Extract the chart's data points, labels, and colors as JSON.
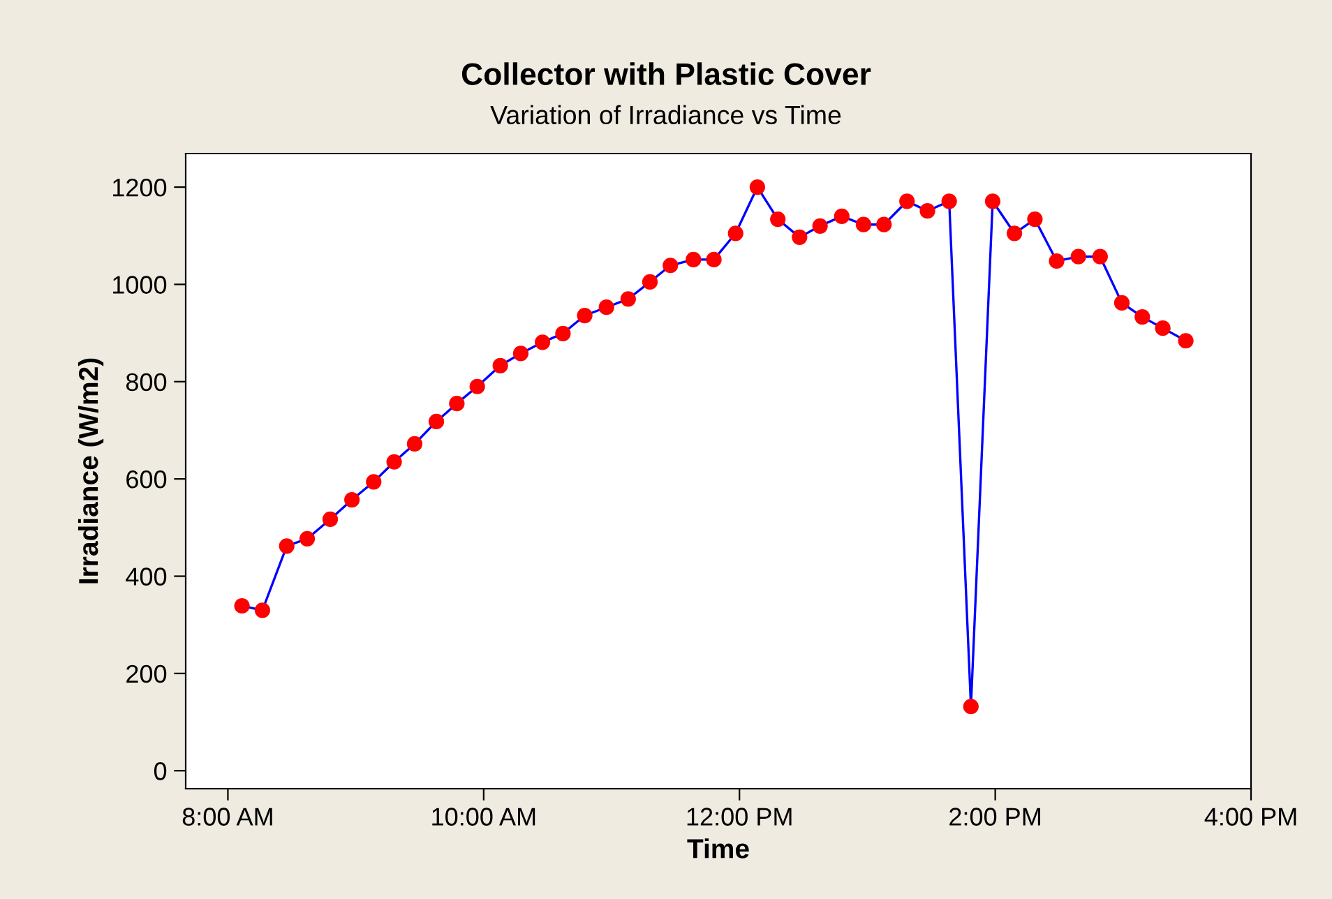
{
  "chart_data": {
    "type": "line",
    "title": "Collector with Plastic Cover",
    "subtitle": "Variation of Irradiance vs Time",
    "xlabel": "Time",
    "ylabel": "Irradiance (W/m2)",
    "x": [
      8.11,
      8.27,
      8.46,
      8.62,
      8.8,
      8.97,
      9.14,
      9.3,
      9.46,
      9.63,
      9.79,
      9.95,
      10.13,
      10.29,
      10.46,
      10.62,
      10.79,
      10.96,
      11.13,
      11.3,
      11.46,
      11.64,
      11.8,
      11.97,
      12.14,
      12.3,
      12.47,
      12.63,
      12.8,
      12.97,
      13.13,
      13.31,
      13.47,
      13.64,
      13.81,
      13.98,
      14.15,
      14.31,
      14.48,
      14.65,
      14.82,
      14.99,
      15.15,
      15.31,
      15.49
    ],
    "series": [
      {
        "color": "#0000ff",
        "colors": [
          "#ff0000",
          "#ff0000",
          "#ff0000",
          "#ff0000",
          "#ff0000",
          "#ff0000",
          "#ff0000",
          "#ff0000",
          "#ff0000",
          "#ff0000",
          "#ff0000",
          "#ff0000",
          "#ff0000",
          "#ff0000",
          "#ff0000",
          "#ff0000",
          "#ff0000",
          "#ff0000",
          "#ff0000",
          "#ff0000",
          "#ff0000",
          "#ff0000",
          "#ff0000",
          "#ff0000",
          "#ff0000",
          "#ff0000",
          "#ff0000",
          "#ff0000",
          "#ff0000",
          "#ff0000",
          "#ff0000",
          "#ff0000",
          "#ff0000",
          "#ff0000",
          "#ff0000",
          "#ff0000",
          "#ff0000",
          "#ff0000",
          "#ff0000",
          "#ff0000",
          "#ff0000",
          "#ff0000",
          "#ff0000",
          "#ff0000",
          "#ff0000"
        ],
        "values": [
          339,
          330,
          462,
          477,
          517,
          557,
          594,
          635,
          672,
          718,
          755,
          790,
          833,
          858,
          881,
          899,
          936,
          953,
          970,
          1005,
          1039,
          1051,
          1051,
          1105,
          1200,
          1134,
          1097,
          1120,
          1140,
          1123,
          1123,
          1171,
          1151,
          1171,
          132,
          1171,
          1105,
          1134,
          1048,
          1057,
          1057,
          962,
          933,
          910,
          884
        ]
      }
    ],
    "xlim": [
      7.67,
      16.0
    ],
    "xticks": [
      {
        "value": 8,
        "label": "8:00 AM"
      },
      {
        "value": 10,
        "label": "10:00 AM"
      },
      {
        "value": 12,
        "label": "12:00 PM"
      },
      {
        "value": 14,
        "label": "2:00 PM"
      },
      {
        "value": 16,
        "label": "4:00 PM"
      }
    ],
    "ylim": [
      -37,
      1269
    ],
    "yticks": [
      0,
      200,
      400,
      600,
      800,
      1000,
      1200
    ],
    "grid": false,
    "legend": false,
    "marker": "circle",
    "line_style": "solid"
  }
}
